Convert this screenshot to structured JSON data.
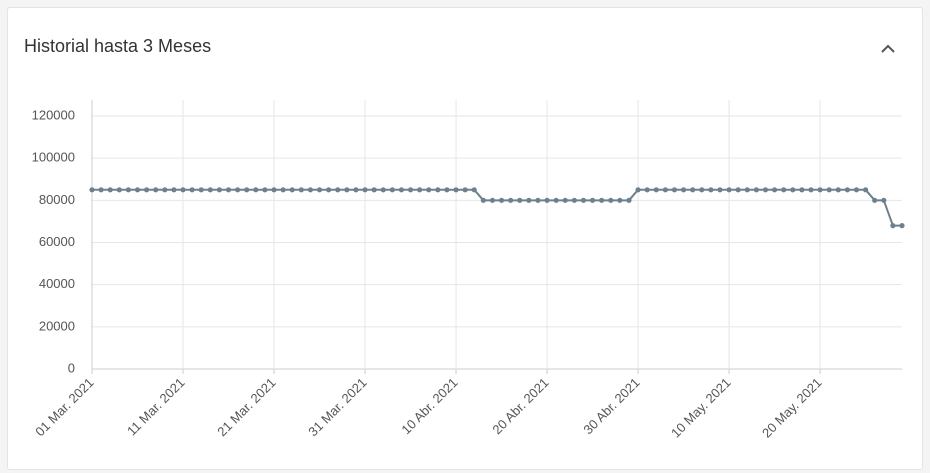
{
  "chart_data": {
    "type": "line",
    "title": "Historial hasta 3 Meses",
    "color": "#6e808c",
    "grid": true,
    "x": [
      "2021-03-01",
      "2021-03-02",
      "2021-03-03",
      "2021-03-04",
      "2021-03-05",
      "2021-03-06",
      "2021-03-07",
      "2021-03-08",
      "2021-03-09",
      "2021-03-10",
      "2021-03-11",
      "2021-03-12",
      "2021-03-13",
      "2021-03-14",
      "2021-03-15",
      "2021-03-16",
      "2021-03-17",
      "2021-03-18",
      "2021-03-19",
      "2021-03-20",
      "2021-03-21",
      "2021-03-22",
      "2021-03-23",
      "2021-03-24",
      "2021-03-25",
      "2021-03-26",
      "2021-03-27",
      "2021-03-28",
      "2021-03-29",
      "2021-03-30",
      "2021-03-31",
      "2021-04-01",
      "2021-04-02",
      "2021-04-03",
      "2021-04-04",
      "2021-04-05",
      "2021-04-06",
      "2021-04-07",
      "2021-04-08",
      "2021-04-09",
      "2021-04-10",
      "2021-04-11",
      "2021-04-12",
      "2021-04-13",
      "2021-04-14",
      "2021-04-15",
      "2021-04-16",
      "2021-04-17",
      "2021-04-18",
      "2021-04-19",
      "2021-04-20",
      "2021-04-21",
      "2021-04-22",
      "2021-04-23",
      "2021-04-24",
      "2021-04-25",
      "2021-04-26",
      "2021-04-27",
      "2021-04-28",
      "2021-04-29",
      "2021-04-30",
      "2021-05-01",
      "2021-05-02",
      "2021-05-03",
      "2021-05-04",
      "2021-05-05",
      "2021-05-06",
      "2021-05-07",
      "2021-05-08",
      "2021-05-09",
      "2021-05-10",
      "2021-05-11",
      "2021-05-12",
      "2021-05-13",
      "2021-05-14",
      "2021-05-15",
      "2021-05-16",
      "2021-05-17",
      "2021-05-18",
      "2021-05-19",
      "2021-05-20",
      "2021-05-21",
      "2021-05-22",
      "2021-05-23",
      "2021-05-24",
      "2021-05-25",
      "2021-05-26",
      "2021-05-27",
      "2021-05-28",
      "2021-05-29"
    ],
    "values": [
      85000,
      85000,
      85000,
      85000,
      85000,
      85000,
      85000,
      85000,
      85000,
      85000,
      85000,
      85000,
      85000,
      85000,
      85000,
      85000,
      85000,
      85000,
      85000,
      85000,
      85000,
      85000,
      85000,
      85000,
      85000,
      85000,
      85000,
      85000,
      85000,
      85000,
      85000,
      85000,
      85000,
      85000,
      85000,
      85000,
      85000,
      85000,
      85000,
      85000,
      85000,
      85000,
      85000,
      80000,
      80000,
      80000,
      80000,
      80000,
      80000,
      80000,
      80000,
      80000,
      80000,
      80000,
      80000,
      80000,
      80000,
      80000,
      80000,
      80000,
      85000,
      85000,
      85000,
      85000,
      85000,
      85000,
      85000,
      85000,
      85000,
      85000,
      85000,
      85000,
      85000,
      85000,
      85000,
      85000,
      85000,
      85000,
      85000,
      85000,
      85000,
      85000,
      85000,
      85000,
      85000,
      85000,
      80000,
      80000,
      68000,
      68000
    ],
    "xlim": [
      "2021-03-01",
      "2021-05-29"
    ],
    "xticks": [
      {
        "value": "2021-03-01",
        "label": "01 Mar. 2021"
      },
      {
        "value": "2021-03-11",
        "label": "11 Mar. 2021"
      },
      {
        "value": "2021-03-21",
        "label": "21 Mar. 2021"
      },
      {
        "value": "2021-03-31",
        "label": "31 Mar. 2021"
      },
      {
        "value": "2021-04-10",
        "label": "10 Abr. 2021"
      },
      {
        "value": "2021-04-20",
        "label": "20 Abr. 2021"
      },
      {
        "value": "2021-04-30",
        "label": "30 Abr. 2021"
      },
      {
        "value": "2021-05-10",
        "label": "10 May. 2021"
      },
      {
        "value": "2021-05-20",
        "label": "20 May. 2021"
      }
    ],
    "ylim": [
      0,
      120000
    ],
    "yticks": [
      0,
      20000,
      40000,
      60000,
      80000,
      100000,
      120000
    ]
  }
}
